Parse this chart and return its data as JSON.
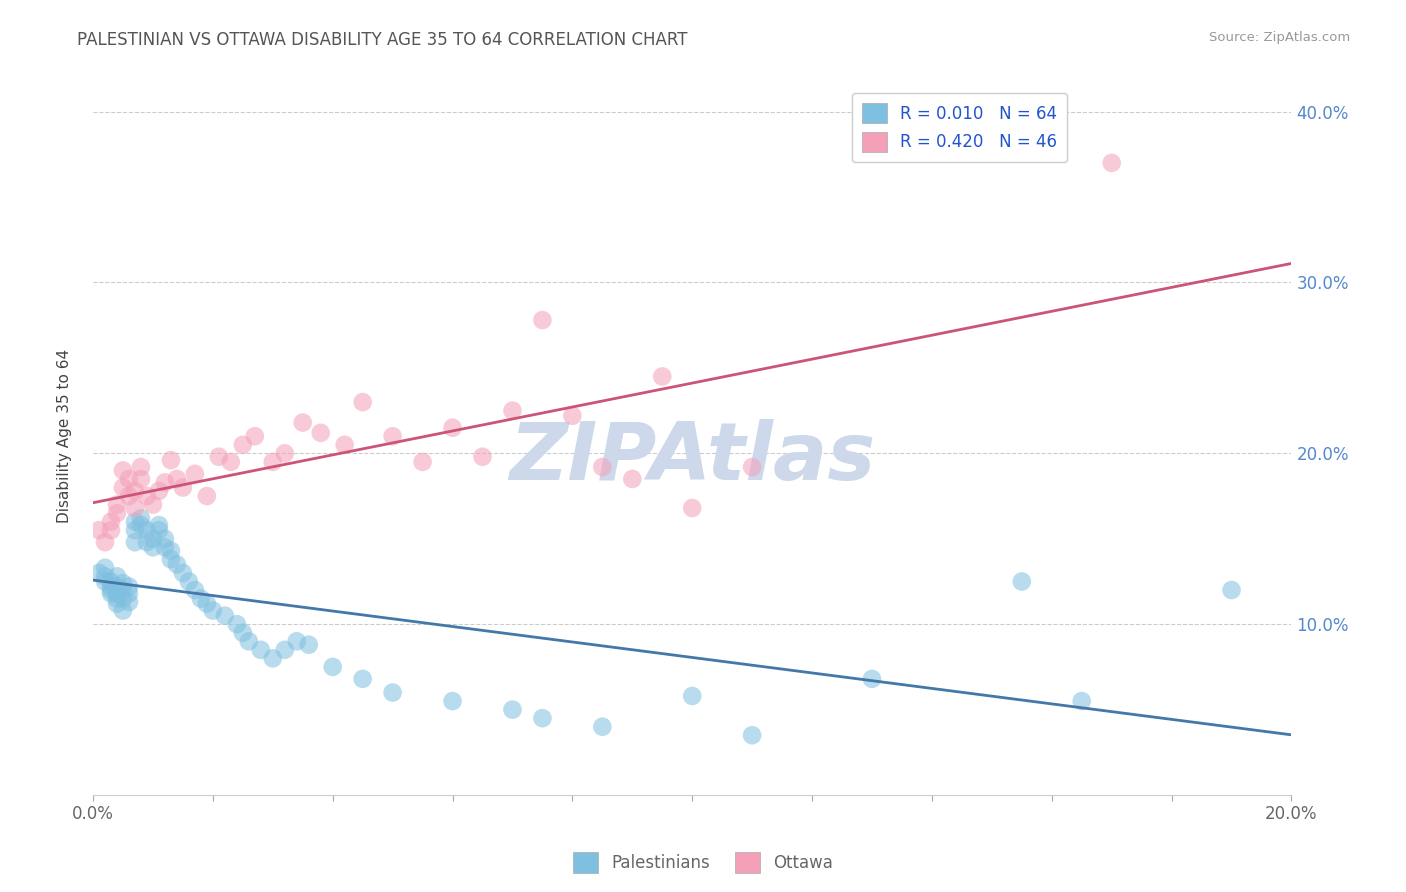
{
  "title": "PALESTINIAN VS OTTAWA DISABILITY AGE 35 TO 64 CORRELATION CHART",
  "source": "Source: ZipAtlas.com",
  "ylabel_label": "Disability Age 35 to 64",
  "xlim": [
    0.0,
    0.2
  ],
  "ylim": [
    0.0,
    0.42
  ],
  "xticks": [
    0.0,
    0.02,
    0.04,
    0.06,
    0.08,
    0.1,
    0.12,
    0.14,
    0.16,
    0.18,
    0.2
  ],
  "yticks": [
    0.0,
    0.05,
    0.1,
    0.15,
    0.2,
    0.25,
    0.3,
    0.35,
    0.4
  ],
  "blue_R": 0.01,
  "blue_N": 64,
  "pink_R": 0.42,
  "pink_N": 46,
  "blue_color": "#7fbfdf",
  "pink_color": "#f4a0b8",
  "blue_line_color": "#4477aa",
  "pink_line_color": "#cc5577",
  "watermark": "ZIPAtlas",
  "watermark_color": "#cdd8ea",
  "blue_x": [
    0.001,
    0.002,
    0.002,
    0.002,
    0.003,
    0.003,
    0.003,
    0.003,
    0.004,
    0.004,
    0.004,
    0.004,
    0.004,
    0.005,
    0.005,
    0.005,
    0.005,
    0.006,
    0.006,
    0.006,
    0.007,
    0.007,
    0.007,
    0.008,
    0.008,
    0.009,
    0.009,
    0.01,
    0.01,
    0.011,
    0.011,
    0.012,
    0.012,
    0.013,
    0.013,
    0.014,
    0.015,
    0.016,
    0.017,
    0.018,
    0.019,
    0.02,
    0.022,
    0.024,
    0.025,
    0.026,
    0.028,
    0.03,
    0.032,
    0.034,
    0.036,
    0.04,
    0.045,
    0.05,
    0.06,
    0.07,
    0.075,
    0.085,
    0.1,
    0.11,
    0.13,
    0.155,
    0.165,
    0.19
  ],
  "blue_y": [
    0.13,
    0.128,
    0.125,
    0.133,
    0.12,
    0.125,
    0.118,
    0.122,
    0.115,
    0.118,
    0.122,
    0.112,
    0.128,
    0.108,
    0.115,
    0.12,
    0.124,
    0.113,
    0.118,
    0.122,
    0.16,
    0.155,
    0.148,
    0.162,
    0.158,
    0.155,
    0.148,
    0.145,
    0.15,
    0.158,
    0.155,
    0.15,
    0.145,
    0.138,
    0.143,
    0.135,
    0.13,
    0.125,
    0.12,
    0.115,
    0.112,
    0.108,
    0.105,
    0.1,
    0.095,
    0.09,
    0.085,
    0.08,
    0.085,
    0.09,
    0.088,
    0.075,
    0.068,
    0.06,
    0.055,
    0.05,
    0.045,
    0.04,
    0.058,
    0.035,
    0.068,
    0.125,
    0.055,
    0.12
  ],
  "pink_x": [
    0.001,
    0.002,
    0.003,
    0.003,
    0.004,
    0.004,
    0.005,
    0.005,
    0.006,
    0.006,
    0.007,
    0.007,
    0.008,
    0.008,
    0.009,
    0.01,
    0.011,
    0.012,
    0.013,
    0.014,
    0.015,
    0.017,
    0.019,
    0.021,
    0.023,
    0.025,
    0.027,
    0.03,
    0.032,
    0.035,
    0.038,
    0.042,
    0.045,
    0.05,
    0.055,
    0.06,
    0.065,
    0.07,
    0.075,
    0.08,
    0.085,
    0.09,
    0.095,
    0.1,
    0.11,
    0.17
  ],
  "pink_y": [
    0.155,
    0.148,
    0.155,
    0.16,
    0.165,
    0.17,
    0.18,
    0.19,
    0.185,
    0.175,
    0.168,
    0.178,
    0.185,
    0.192,
    0.175,
    0.17,
    0.178,
    0.183,
    0.196,
    0.185,
    0.18,
    0.188,
    0.175,
    0.198,
    0.195,
    0.205,
    0.21,
    0.195,
    0.2,
    0.218,
    0.212,
    0.205,
    0.23,
    0.21,
    0.195,
    0.215,
    0.198,
    0.225,
    0.278,
    0.222,
    0.192,
    0.185,
    0.245,
    0.168,
    0.192,
    0.37
  ]
}
